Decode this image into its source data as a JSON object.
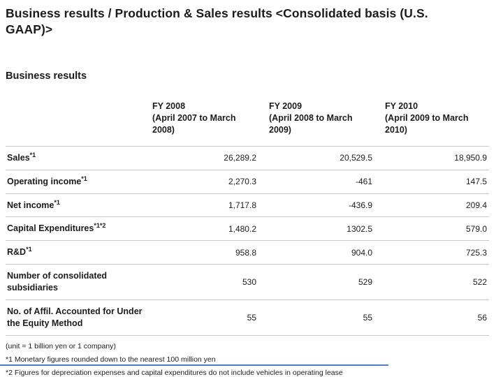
{
  "title": "Business results / Production & Sales results <Consolidated basis (U.S. GAAP)>",
  "section_heading": "Business results",
  "table": {
    "columns": [
      {
        "fy": "FY 2008",
        "period": "(April 2007 to March 2008)"
      },
      {
        "fy": "FY 2009",
        "period": "(April 2008 to March 2009)"
      },
      {
        "fy": "FY 2010",
        "period": "(April 2009 to March 2010)"
      }
    ],
    "rows": [
      {
        "label": "Sales",
        "sup": "*1",
        "values": [
          "26,289.2",
          "20,529.5",
          "18,950.9"
        ]
      },
      {
        "label": "Operating income",
        "sup": "*1",
        "values": [
          "2,270.3",
          "-461",
          "147.5"
        ]
      },
      {
        "label": "Net income",
        "sup": "*1",
        "values": [
          "1,717.8",
          "-436.9",
          "209.4"
        ]
      },
      {
        "label": "Capital Expenditures",
        "sup": "*1*2",
        "values": [
          "1,480.2",
          "1302.5",
          "579.0"
        ]
      },
      {
        "label": "R&D",
        "sup": "*1",
        "values": [
          "958.8",
          "904.0",
          "725.3"
        ]
      },
      {
        "label": "Number of consolidated subsidiaries",
        "sup": "",
        "values": [
          "530",
          "529",
          "522"
        ]
      },
      {
        "label": "No. of Affil. Accounted for Under the Equity Method",
        "sup": "",
        "values": [
          "55",
          "55",
          "56"
        ]
      }
    ]
  },
  "footnotes": {
    "unit": "(unit = 1 billion yen or 1 company)",
    "note1": "*1 Monetary figures rounded down to the nearest 100 million yen",
    "note2": "*2 Figures for depreciation expenses and capital expenditures do not include vehicles in operating lease"
  },
  "colors": {
    "accent_line": "#4f81bd",
    "table_line": "#c9c9c9",
    "text": "#1b1b1b"
  }
}
